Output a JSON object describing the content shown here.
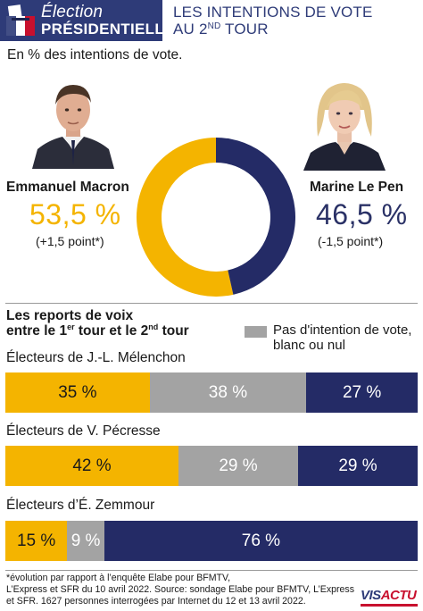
{
  "header": {
    "brand_line1": "Élection",
    "brand_line2": "PRÉSIDENTIELLE",
    "title_line1": "LES INTENTIONS DE VOTE",
    "title_line2_pre": "AU 2",
    "title_line2_sup": "ND",
    "title_line2_post": " TOUR"
  },
  "subtitle": "En % des intentions de vote.",
  "candidates": [
    {
      "name": "Emmanuel Macron",
      "pct_label": "53,5 %",
      "evolution": "(+1,5 point*)",
      "value": 53.5,
      "color": "#f4b400"
    },
    {
      "name": "Marine Le Pen",
      "pct_label": "46,5 %",
      "evolution": "(-1,5 point*)",
      "value": 46.5,
      "color": "#242b66"
    }
  ],
  "reports": {
    "title_line1": "Les reports de voix",
    "title_line2_a": "entre le 1",
    "title_line2_sup1": "er",
    "title_line2_b": " tour et le 2",
    "title_line2_sup2": "nd",
    "title_line2_c": " tour",
    "legend_line1": "Pas d'intention de vote,",
    "legend_line2": "blanc ou nul",
    "legend_color": "#a3a3a3"
  },
  "chart_data": [
    {
      "type": "pie",
      "categories": [
        "Emmanuel Macron",
        "Marine Le Pen"
      ],
      "values": [
        53.5,
        46.5
      ],
      "colors": [
        "#f4b400",
        "#242b66"
      ],
      "title": "LES INTENTIONS DE VOTE AU 2ND TOUR",
      "subtitle": "En % des intentions de vote."
    },
    {
      "type": "bar",
      "stacked": true,
      "orientation": "horizontal",
      "title": "Les reports de voix entre le 1er tour et le 2nd tour",
      "categories": [
        "Électeurs de J.-L. Mélenchon",
        "Électeurs de V. Pécresse",
        "Électeurs d’É. Zemmour"
      ],
      "series": [
        {
          "color": "#f4b400",
          "values": [
            35,
            42,
            15
          ],
          "labels": [
            "35 %",
            "42 %",
            "15 %"
          ]
        },
        {
          "name": "Pas d'intention de vote, blanc ou nul",
          "color": "#a3a3a3",
          "values": [
            38,
            29,
            9
          ],
          "labels": [
            "38 %",
            "29 %",
            "9 %"
          ]
        },
        {
          "color": "#242b66",
          "values": [
            27,
            29,
            76
          ],
          "labels": [
            "27 %",
            "29 %",
            "76 %"
          ]
        }
      ]
    }
  ],
  "footnote": {
    "line1": "*évolution par rapport à l’enquête Elabe pour BFMTV,",
    "line2": "L’Express et SFR du 10 avril 2022. Source: sondage Elabe pour BFMTV, L’Express",
    "line3": "et SFR. 1627 personnes interrogées par Internet du 12 et 13 avril 2022."
  },
  "logo": {
    "part1": "VIS",
    "part2": "ACTU"
  }
}
